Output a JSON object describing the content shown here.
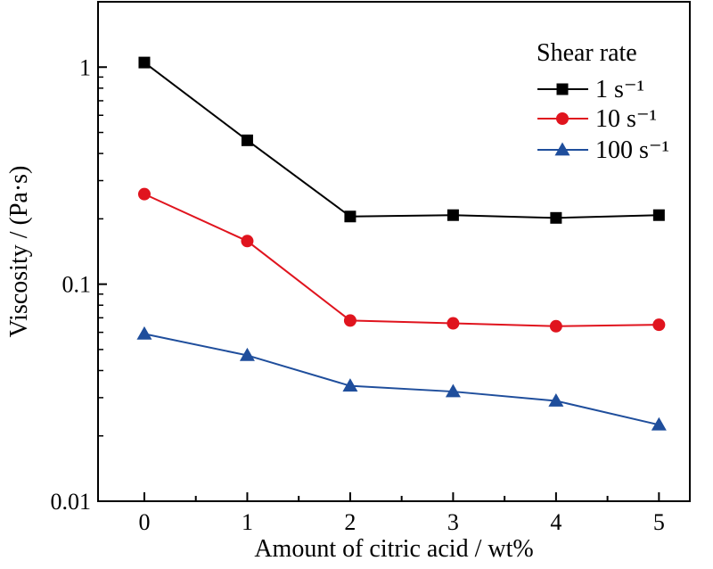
{
  "chart_data": {
    "type": "line",
    "title": "",
    "xlabel": "Amount of citric acid / wt%",
    "ylabel": "Viscosity / (Pa·s)",
    "x": [
      0,
      1,
      2,
      3,
      4,
      5
    ],
    "xlim": [
      -0.45,
      5.3
    ],
    "ylim": [
      0.01,
      2.0
    ],
    "yscale": "log",
    "xticks": [
      "0",
      "1",
      "2",
      "3",
      "4",
      "5"
    ],
    "yticks": [
      "0.01",
      "0.1",
      "1"
    ],
    "legend": {
      "title": "Shear rate",
      "position": "top-right"
    },
    "series": [
      {
        "name": "1 s⁻¹",
        "marker": "square",
        "color": "#000000",
        "values": [
          1.05,
          0.46,
          0.205,
          0.208,
          0.202,
          0.208
        ]
      },
      {
        "name": "10 s⁻¹",
        "marker": "circle",
        "color": "#e0141e",
        "values": [
          0.26,
          0.158,
          0.068,
          0.066,
          0.064,
          0.065
        ]
      },
      {
        "name": "100 s⁻¹",
        "marker": "triangle",
        "color": "#1f4e9c",
        "values": [
          0.059,
          0.047,
          0.034,
          0.032,
          0.029,
          0.0225
        ]
      }
    ]
  }
}
